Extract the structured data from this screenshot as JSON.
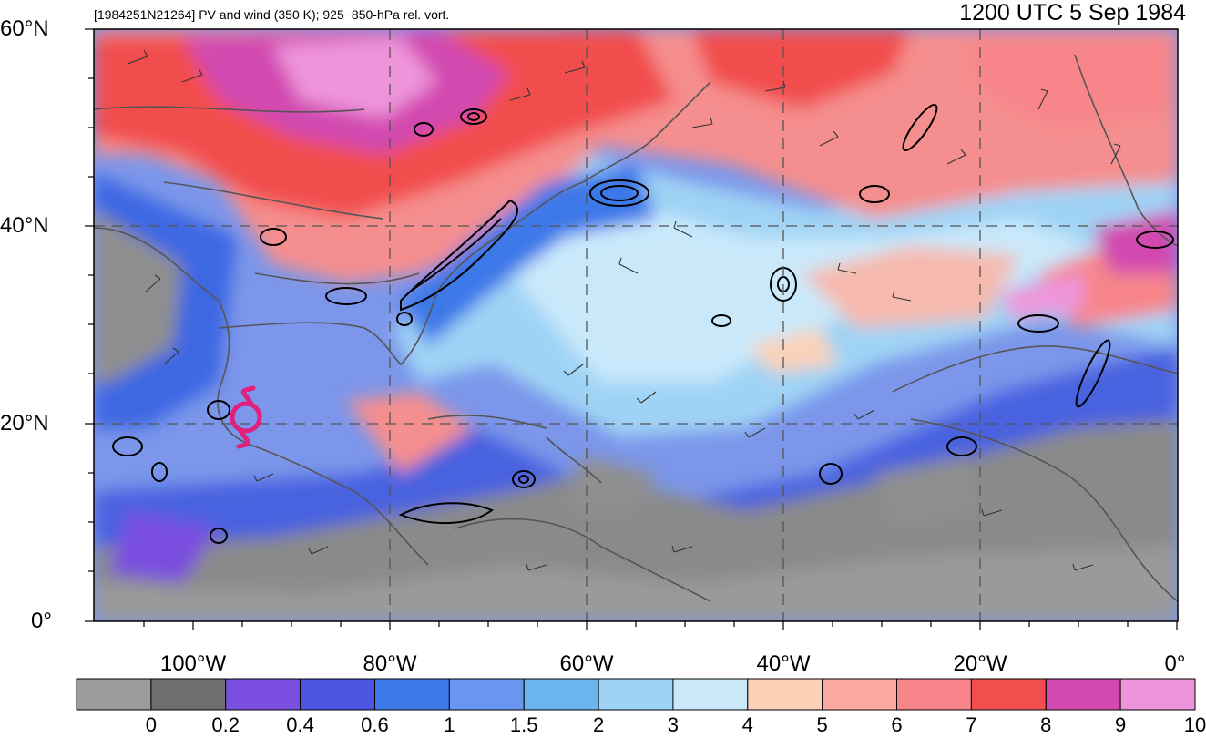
{
  "header": {
    "subtitle": "[1984251N21264] PV and wind (350 K); 925−850-hPa rel. vort.",
    "title": "1200 UTC 5 Sep 1984"
  },
  "map": {
    "lat_labels": [
      "60°N",
      "40°N",
      "20°N",
      "0°"
    ],
    "lon_labels": [
      "100°W",
      "80°W",
      "60°W",
      "40°W",
      "20°W",
      "0°"
    ],
    "storm_symbol": "tropical-cyclone-icon",
    "storm_color": "#e0207a"
  },
  "colorbar": {
    "labels": [
      "0",
      "0.2",
      "0.4",
      "0.6",
      "1",
      "1.5",
      "2",
      "3",
      "4",
      "5",
      "6",
      "7",
      "8",
      "9",
      "10"
    ],
    "colors": [
      "#9c9c9c",
      "#6e6e6e",
      "#7a4fe0",
      "#4a56e0",
      "#3d78e8",
      "#6a96ef",
      "#6cb4ee",
      "#9fd3f5",
      "#c9e9fb",
      "#fbd2b8",
      "#fbaaa2",
      "#f7858a",
      "#f24e4e",
      "#d24ab0",
      "#ee94da"
    ]
  }
}
